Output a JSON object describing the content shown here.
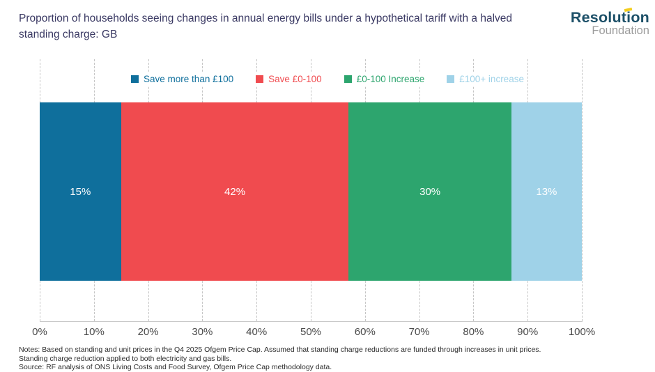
{
  "header": {
    "title": "Proportion of households seeing changes in annual energy bills under a hypothetical tariff with a halved standing charge: GB",
    "logo": {
      "line1": "Resolution",
      "line2": "Foundation",
      "accent_color": "#f3cd1f",
      "line1_color": "#1d5068",
      "line2_color": "#9b9b9b"
    }
  },
  "chart_data": {
    "type": "bar",
    "variant": "horizontal-stacked",
    "title": "Proportion of households seeing changes in annual energy bills under a hypothetical tariff with a halved standing charge: GB",
    "xlabel": "",
    "ylabel": "",
    "xlim": [
      0,
      100
    ],
    "grid": "dashed-vertical",
    "legend_position": "top-center",
    "series": [
      {
        "name": "Save more than £100",
        "value": 15,
        "label": "15%",
        "color": "#0f6f9c"
      },
      {
        "name": "Save £0-100",
        "value": 42,
        "label": "42%",
        "color": "#f04b4f"
      },
      {
        "name": "£0-100 Increase",
        "value": 30,
        "label": "30%",
        "color": "#2da56e"
      },
      {
        "name": "£100+ increase",
        "value": 13,
        "label": "13%",
        "color": "#9fd2e8"
      }
    ],
    "x_ticks": [
      "0%",
      "10%",
      "20%",
      "30%",
      "40%",
      "50%",
      "60%",
      "70%",
      "80%",
      "90%",
      "100%"
    ]
  },
  "footer": {
    "notes_line1": "Notes: Based on standing and unit prices in the Q4 2025 Ofgem Price Cap. Assumed that standing charge reductions are funded through increases in unit prices.",
    "notes_line2": "Standing charge reduction applied to both electricity and gas bills.",
    "notes_line3": "Source: RF analysis of ONS Living Costs and Food Survey, Ofgem Price Cap methodology data."
  }
}
